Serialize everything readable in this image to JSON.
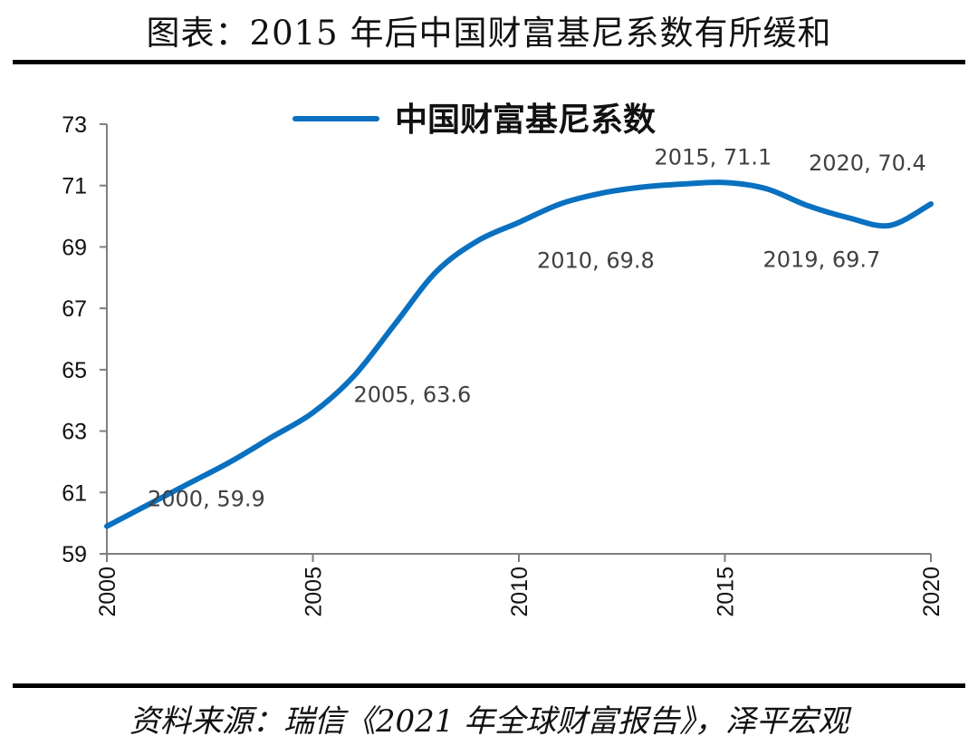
{
  "title": "图表：2015 年后中国财富基尼系数有所缓和",
  "source": "资料来源：瑞信《2021 年全球财富报告》，泽平宏观",
  "colors": {
    "series_line": "#0a70c0",
    "axis": "#7f7f7f",
    "rule": "#000000"
  },
  "chart_data": {
    "type": "line",
    "title": "",
    "xlabel": "",
    "ylabel": "",
    "xlim": [
      2000,
      2020
    ],
    "ylim": [
      59,
      73
    ],
    "x_ticks": [
      "2000",
      "2005",
      "2010",
      "2015",
      "2020"
    ],
    "y_ticks": [
      "59",
      "61",
      "63",
      "65",
      "67",
      "69",
      "71",
      "73"
    ],
    "grid": false,
    "legend_position": "top-center",
    "series": [
      {
        "name": "中国财富基尼系数",
        "x": [
          2000,
          2001,
          2002,
          2003,
          2004,
          2005,
          2006,
          2007,
          2008,
          2009,
          2010,
          2011,
          2012,
          2013,
          2014,
          2015,
          2016,
          2017,
          2018,
          2019,
          2020
        ],
        "values": [
          59.9,
          60.6,
          61.3,
          62.0,
          62.8,
          63.6,
          64.8,
          66.5,
          68.2,
          69.2,
          69.8,
          70.4,
          70.75,
          70.95,
          71.05,
          71.1,
          70.9,
          70.35,
          69.95,
          69.7,
          70.4
        ]
      }
    ],
    "annotations": [
      {
        "x": 2000,
        "y": 59.9,
        "text": "2000, 59.9"
      },
      {
        "x": 2005,
        "y": 63.6,
        "text": "2005, 63.6"
      },
      {
        "x": 2010,
        "y": 69.8,
        "text": "2010, 69.8"
      },
      {
        "x": 2015,
        "y": 71.1,
        "text": "2015, 71.1"
      },
      {
        "x": 2019,
        "y": 69.7,
        "text": "2019, 69.7"
      },
      {
        "x": 2020,
        "y": 70.4,
        "text": "2020, 70.4"
      }
    ]
  }
}
